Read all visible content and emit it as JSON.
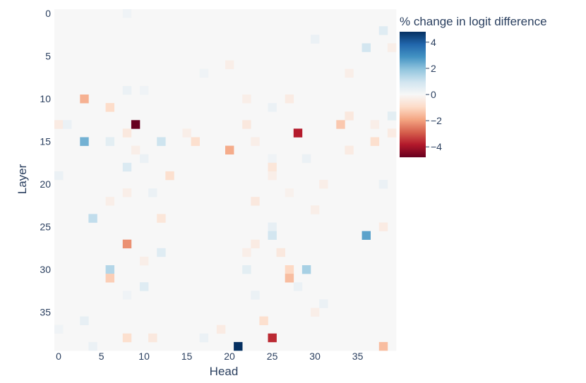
{
  "chart_data": {
    "type": "heatmap",
    "xlabel": "Head",
    "ylabel": "Layer",
    "x_range": [
      0,
      39
    ],
    "y_range": [
      0,
      39
    ],
    "x_ticks": [
      "0",
      "5",
      "10",
      "15",
      "20",
      "25",
      "30",
      "35"
    ],
    "y_ticks": [
      "0",
      "5",
      "10",
      "15",
      "20",
      "25",
      "30",
      "35"
    ],
    "colorbar": {
      "title": "% change in logit difference",
      "range": [
        -4.8,
        4.8
      ],
      "ticks": [
        "4",
        "2",
        "0",
        "−2",
        "−4"
      ],
      "colorscale": [
        "#67001f",
        "#b2182b",
        "#d6604d",
        "#f4a582",
        "#fddbc7",
        "#f7f7f7",
        "#d1e5f0",
        "#92c5de",
        "#4393c3",
        "#2166ac",
        "#053061"
      ]
    },
    "background_value": 0,
    "cells": [
      [
        0,
        8,
        0.2
      ],
      [
        2,
        38,
        0.6
      ],
      [
        3,
        30,
        0.3
      ],
      [
        4,
        36,
        0.9
      ],
      [
        4,
        39,
        -0.3
      ],
      [
        6,
        20,
        -0.3
      ],
      [
        7,
        34,
        -0.3
      ],
      [
        7,
        17,
        0.2
      ],
      [
        9,
        8,
        0.3
      ],
      [
        9,
        10,
        0.2
      ],
      [
        10,
        3,
        -1.7
      ],
      [
        10,
        22,
        -0.3
      ],
      [
        10,
        27,
        -0.4
      ],
      [
        11,
        6,
        -0.9
      ],
      [
        11,
        25,
        0.3
      ],
      [
        12,
        34,
        -0.5
      ],
      [
        12,
        39,
        0.5
      ],
      [
        13,
        0,
        -0.4
      ],
      [
        13,
        1,
        0.3
      ],
      [
        13,
        9,
        -4.8
      ],
      [
        13,
        22,
        -0.5
      ],
      [
        13,
        33,
        -1.3
      ],
      [
        13,
        37,
        -0.3
      ],
      [
        14,
        8,
        -0.5
      ],
      [
        14,
        15,
        -0.3
      ],
      [
        14,
        28,
        -3.8
      ],
      [
        14,
        39,
        -0.4
      ],
      [
        15,
        3,
        2.3
      ],
      [
        15,
        6,
        0.5
      ],
      [
        15,
        12,
        1.0
      ],
      [
        15,
        16,
        -0.8
      ],
      [
        15,
        23,
        -0.3
      ],
      [
        15,
        37,
        -0.8
      ],
      [
        16,
        9,
        -0.3
      ],
      [
        16,
        20,
        -1.8
      ],
      [
        16,
        34,
        -0.4
      ],
      [
        17,
        10,
        0.3
      ],
      [
        17,
        25,
        0.2
      ],
      [
        17,
        29,
        0.3
      ],
      [
        18,
        8,
        0.7
      ],
      [
        18,
        25,
        -0.6
      ],
      [
        19,
        0,
        0.3
      ],
      [
        19,
        13,
        -0.8
      ],
      [
        19,
        25,
        -0.3
      ],
      [
        20,
        31,
        -0.3
      ],
      [
        20,
        38,
        0.3
      ],
      [
        21,
        8,
        -0.3
      ],
      [
        21,
        11,
        0.3
      ],
      [
        21,
        27,
        -0.2
      ],
      [
        22,
        23,
        -0.5
      ],
      [
        22,
        6,
        -0.3
      ],
      [
        23,
        30,
        -0.3
      ],
      [
        24,
        4,
        1.2
      ],
      [
        24,
        12,
        -0.6
      ],
      [
        25,
        25,
        0.4
      ],
      [
        25,
        38,
        -0.4
      ],
      [
        26,
        25,
        0.9
      ],
      [
        26,
        36,
        2.6
      ],
      [
        27,
        8,
        -2.2
      ],
      [
        27,
        23,
        -0.4
      ],
      [
        28,
        12,
        0.6
      ],
      [
        28,
        22,
        -0.3
      ],
      [
        28,
        26,
        -0.5
      ],
      [
        29,
        10,
        -0.3
      ],
      [
        30,
        6,
        1.4
      ],
      [
        30,
        22,
        0.5
      ],
      [
        30,
        27,
        -1.0
      ],
      [
        30,
        29,
        1.6
      ],
      [
        31,
        6,
        -1.2
      ],
      [
        31,
        27,
        -1.5
      ],
      [
        32,
        10,
        0.6
      ],
      [
        32,
        28,
        0.3
      ],
      [
        33,
        8,
        0.2
      ],
      [
        33,
        23,
        0.3
      ],
      [
        34,
        31,
        0.3
      ],
      [
        35,
        30,
        -0.3
      ],
      [
        36,
        3,
        0.4
      ],
      [
        36,
        24,
        -0.8
      ],
      [
        37,
        0,
        0.2
      ],
      [
        37,
        19,
        -0.4
      ],
      [
        38,
        8,
        -0.8
      ],
      [
        38,
        11,
        -0.5
      ],
      [
        38,
        17,
        0.3
      ],
      [
        38,
        25,
        -3.6
      ],
      [
        39,
        4,
        0.3
      ],
      [
        39,
        21,
        4.8
      ],
      [
        39,
        38,
        -1.5
      ]
    ]
  }
}
